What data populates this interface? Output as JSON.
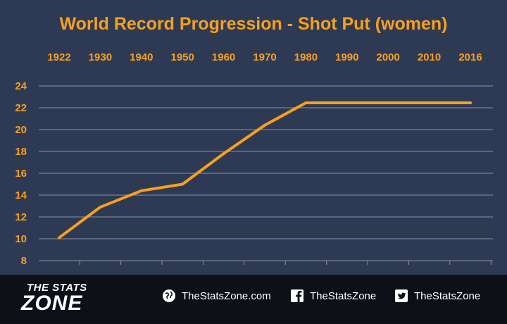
{
  "chart_data": {
    "type": "line",
    "title": "World Record Progression - Shot Put (women)",
    "x_tick_labels": [
      "1922",
      "1930",
      "1940",
      "1950",
      "1960",
      "1970",
      "1980",
      "1990",
      "2000",
      "2010",
      "2016"
    ],
    "y_tick_labels": [
      "8",
      "10",
      "12",
      "14",
      "16",
      "18",
      "20",
      "22",
      "24"
    ],
    "ylim": [
      8,
      24
    ],
    "grid": true,
    "xlabel": "",
    "ylabel": "",
    "series": [
      {
        "values": [
          10.1,
          12.9,
          14.4,
          15.0,
          17.8,
          20.4,
          22.45,
          22.45,
          22.45,
          22.45,
          22.45
        ]
      }
    ],
    "colors": {
      "line": "#f7a01e",
      "text": "#f7a01e",
      "grid": "#8a93a6",
      "background": "#2e3a54"
    }
  },
  "footer": {
    "logo_line1": "THE STATS",
    "logo_line2": "ZONE",
    "website": "TheStatsZone.com",
    "facebook": "TheStatsZone",
    "twitter": "TheStatsZone",
    "icons": [
      "globe-icon",
      "facebook-icon",
      "twitter-icon"
    ],
    "background": "#0d1117"
  }
}
